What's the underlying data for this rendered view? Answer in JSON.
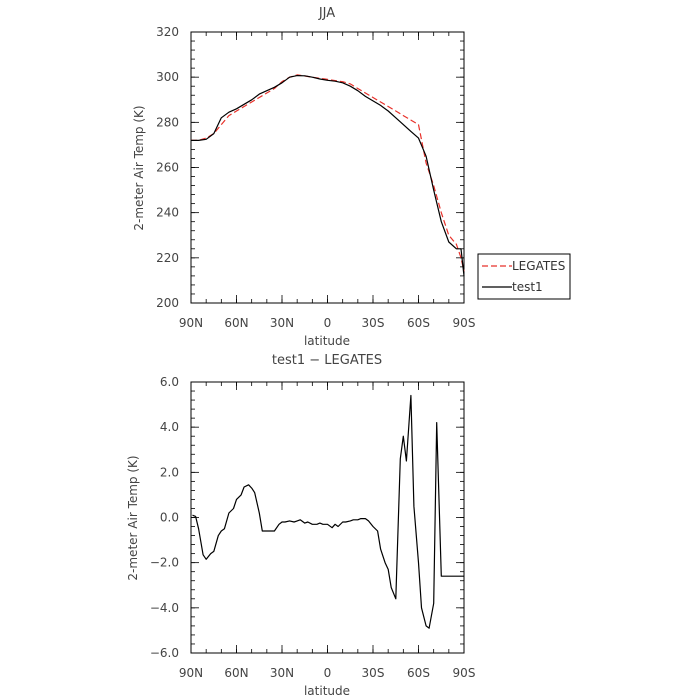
{
  "chart_data": [
    {
      "type": "line",
      "title": "JJA",
      "xlabel": "latitude",
      "ylabel": "2-meter Air Temp (K)",
      "xlim": [
        90,
        -90
      ],
      "ylim": [
        200,
        320
      ],
      "xticks": [
        {
          "value": 90,
          "label": "90N"
        },
        {
          "value": 60,
          "label": "60N"
        },
        {
          "value": 30,
          "label": "30N"
        },
        {
          "value": 0,
          "label": "0"
        },
        {
          "value": -30,
          "label": "30S"
        },
        {
          "value": -60,
          "label": "60S"
        },
        {
          "value": -90,
          "label": "90S"
        }
      ],
      "yticks": [
        {
          "value": 200,
          "label": "200"
        },
        {
          "value": 220,
          "label": "220"
        },
        {
          "value": 240,
          "label": "240"
        },
        {
          "value": 260,
          "label": "260"
        },
        {
          "value": 280,
          "label": "280"
        },
        {
          "value": 300,
          "label": "300"
        },
        {
          "value": 320,
          "label": "320"
        }
      ],
      "legend_position": "outside-right",
      "series": [
        {
          "name": "LEGATES",
          "color": "#e8312a",
          "dash": "dashed",
          "x": [
            90,
            85,
            80,
            75,
            70,
            65,
            60,
            55,
            50,
            45,
            40,
            35,
            30,
            25,
            20,
            15,
            10,
            5,
            0,
            -5,
            -10,
            -15,
            -20,
            -25,
            -30,
            -35,
            -40,
            -45,
            -50,
            -55,
            -60,
            -65,
            -70,
            -75,
            -80,
            -85,
            -88,
            -90
          ],
          "y": [
            272,
            272,
            273,
            275,
            279,
            283,
            285,
            287,
            289,
            291,
            293,
            295,
            298,
            300,
            301,
            300.5,
            300,
            299.5,
            299,
            298.5,
            298,
            297,
            295,
            293,
            291,
            289,
            287,
            285,
            283,
            281,
            279,
            262,
            252,
            240,
            230,
            226,
            220,
            214
          ]
        },
        {
          "name": "test1",
          "color": "#000000",
          "dash": "solid",
          "x": [
            90,
            85,
            80,
            75,
            70,
            65,
            60,
            55,
            50,
            45,
            40,
            35,
            30,
            25,
            20,
            15,
            10,
            5,
            0,
            -5,
            -10,
            -15,
            -20,
            -25,
            -30,
            -35,
            -40,
            -45,
            -50,
            -55,
            -60,
            -65,
            -70,
            -75,
            -80,
            -85,
            -88,
            -90
          ],
          "y": [
            272,
            272,
            272.5,
            275,
            282,
            284.5,
            286,
            288,
            290,
            292.5,
            294,
            295.5,
            297.5,
            300,
            300.7,
            300.6,
            300,
            299.2,
            298.6,
            298.2,
            297.5,
            296,
            294,
            291.5,
            289.5,
            287.5,
            285,
            282,
            279,
            276,
            273,
            265,
            250,
            236,
            227,
            224,
            224,
            212
          ]
        }
      ]
    },
    {
      "type": "line",
      "title": "test1 − LEGATES",
      "xlabel": "latitude",
      "ylabel": "2-meter Air Temp (K)",
      "xlim": [
        90,
        -90
      ],
      "ylim": [
        -6,
        6
      ],
      "xticks": [
        {
          "value": 90,
          "label": "90N"
        },
        {
          "value": 60,
          "label": "60N"
        },
        {
          "value": 30,
          "label": "30N"
        },
        {
          "value": 0,
          "label": "0"
        },
        {
          "value": -30,
          "label": "30S"
        },
        {
          "value": -60,
          "label": "60S"
        },
        {
          "value": -90,
          "label": "90S"
        }
      ],
      "yticks": [
        {
          "value": -6,
          "label": "−6.0"
        },
        {
          "value": -4,
          "label": "−4.0"
        },
        {
          "value": -2,
          "label": "−2.0"
        },
        {
          "value": 0,
          "label": "0.0"
        },
        {
          "value": 2,
          "label": "2.0"
        },
        {
          "value": 4,
          "label": "4.0"
        },
        {
          "value": 6,
          "label": "6.0"
        }
      ],
      "series": [
        {
          "color": "#000000",
          "dash": "solid",
          "x": [
            89,
            87,
            85,
            82,
            80,
            77,
            75,
            72,
            70,
            68,
            65,
            62,
            60,
            57,
            55,
            52,
            50,
            48,
            45,
            43,
            41,
            38,
            35,
            32,
            30,
            28,
            25,
            22,
            20,
            18,
            15,
            13,
            10,
            7,
            5,
            3,
            0,
            -3,
            -5,
            -7,
            -10,
            -12,
            -15,
            -17,
            -20,
            -22,
            -25,
            -27,
            -30,
            -33,
            -35,
            -38,
            -40,
            -42,
            -45,
            -48,
            -50,
            -52,
            -55,
            -57,
            -60,
            -62,
            -65,
            -67,
            -70,
            -72,
            -75,
            -77,
            -80,
            -82,
            -85,
            -87,
            -88,
            -90
          ],
          "y": [
            0.1,
            0.05,
            -0.5,
            -1.65,
            -1.85,
            -1.6,
            -1.5,
            -0.8,
            -0.6,
            -0.5,
            0.2,
            0.4,
            0.8,
            1.0,
            1.35,
            1.45,
            1.3,
            1.1,
            0.2,
            -0.6,
            -0.6,
            -0.6,
            -0.6,
            -0.3,
            -0.2,
            -0.2,
            -0.15,
            -0.2,
            -0.15,
            -0.1,
            -0.25,
            -0.2,
            -0.3,
            -0.3,
            -0.25,
            -0.3,
            -0.3,
            -0.45,
            -0.3,
            -0.4,
            -0.2,
            -0.2,
            -0.15,
            -0.1,
            -0.1,
            -0.05,
            -0.05,
            -0.15,
            -0.4,
            -0.6,
            -1.4,
            -2.0,
            -2.3,
            -3.1,
            -3.6,
            2.6,
            3.6,
            2.5,
            5.4,
            0.5,
            -2.0,
            -4.0,
            -4.8,
            -4.9,
            -3.8,
            4.2,
            -2.6,
            -2.6,
            -2.6,
            -2.6,
            -2.6,
            -2.6,
            -2.6,
            -2.6
          ]
        }
      ]
    }
  ]
}
